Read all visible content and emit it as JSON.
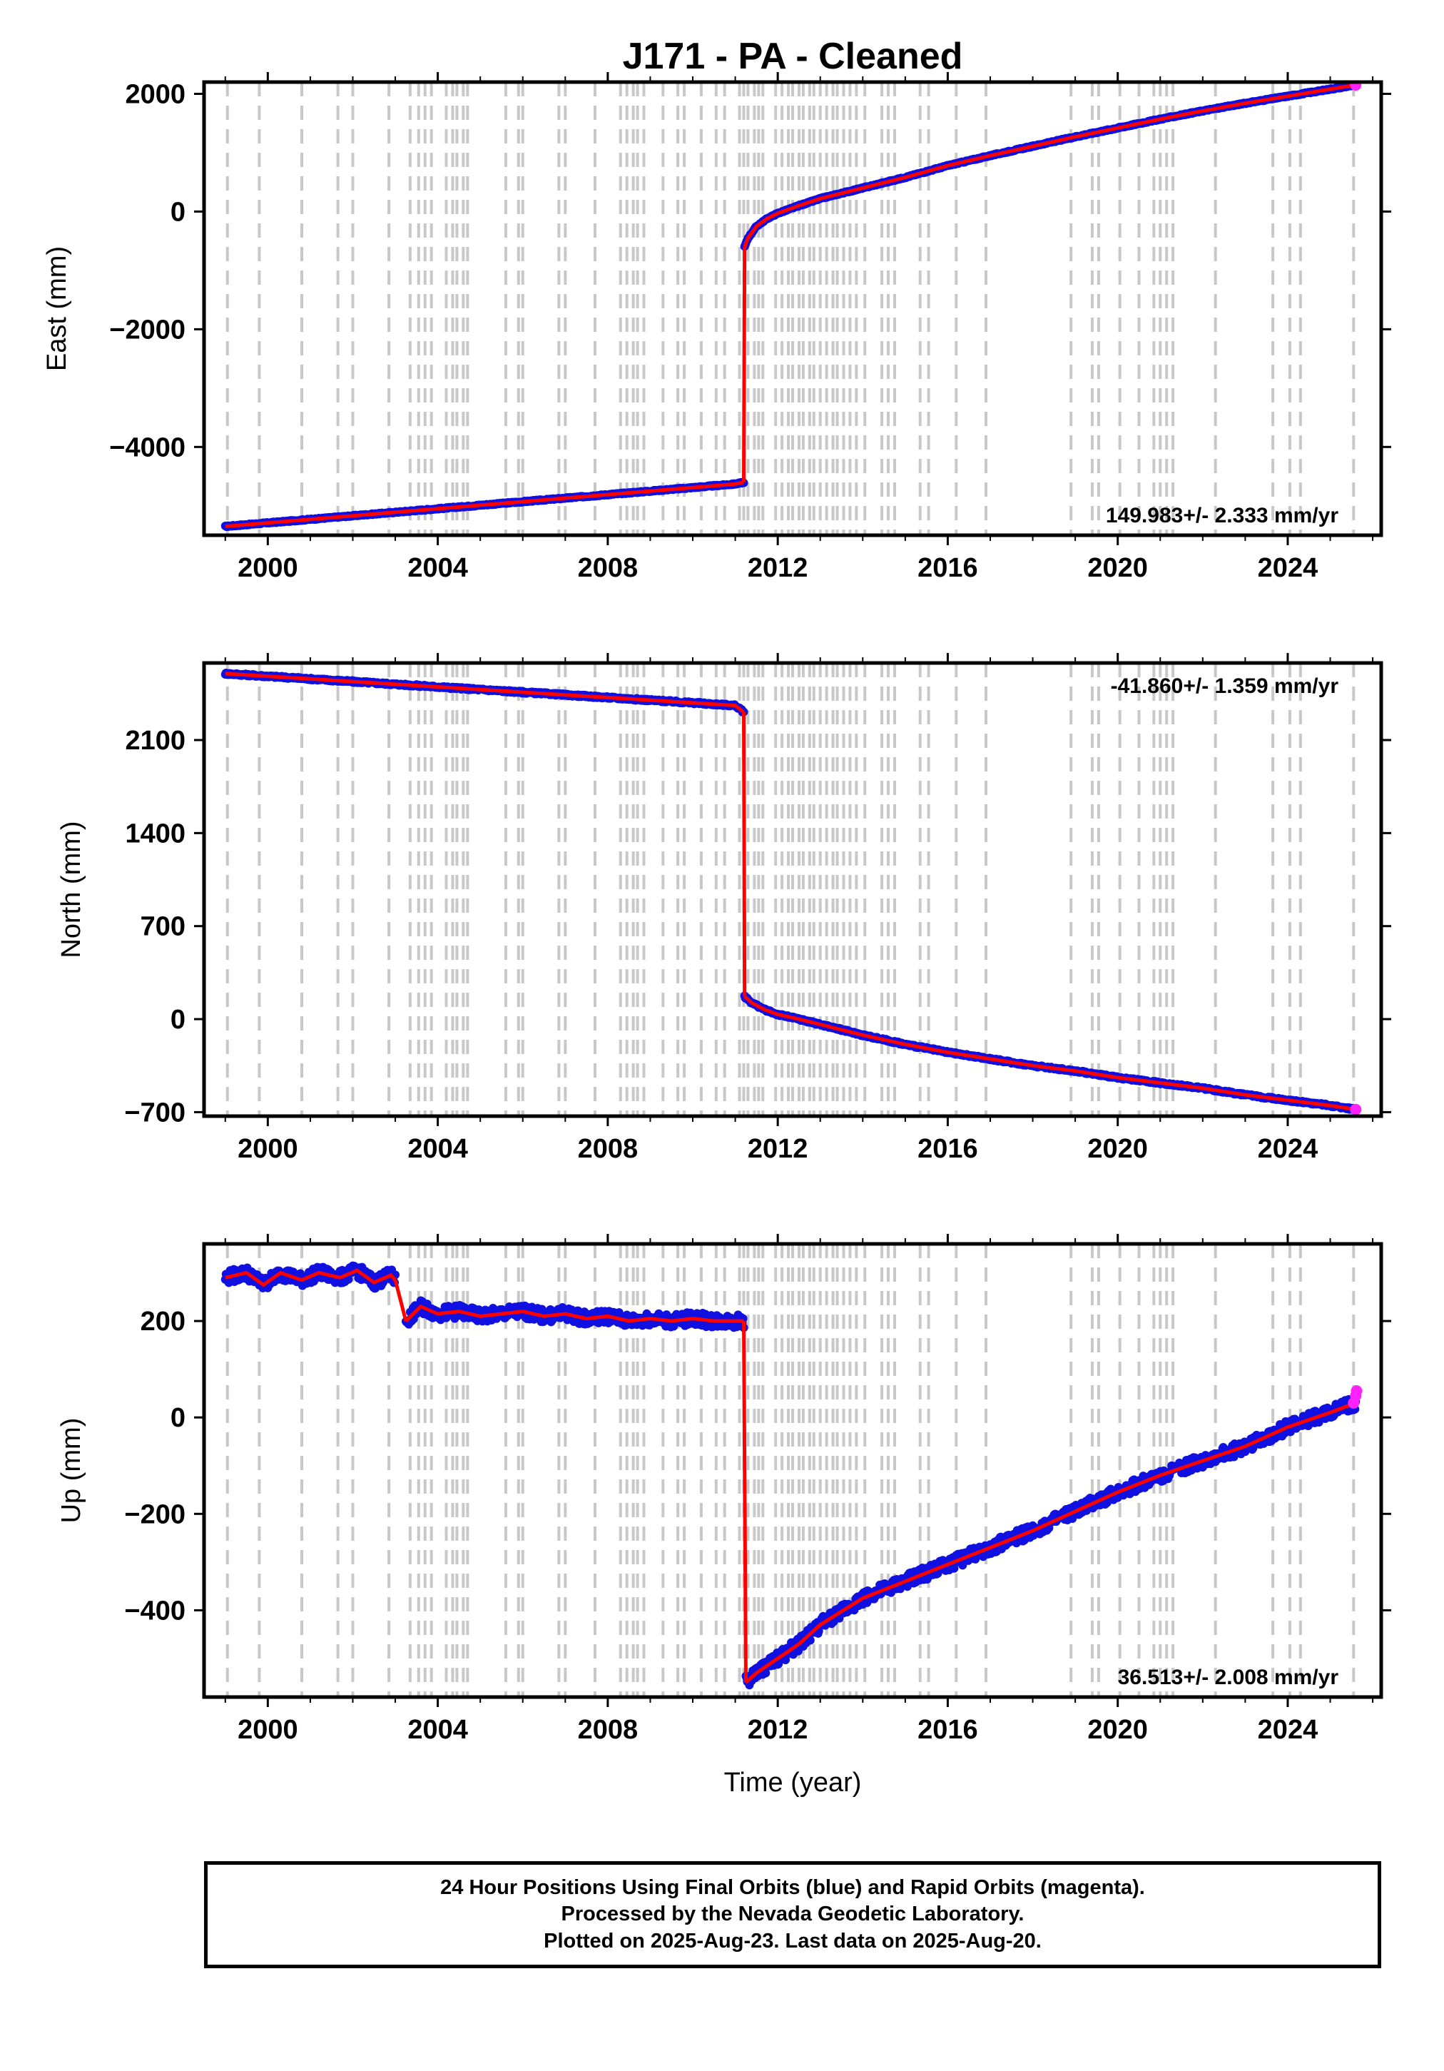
{
  "title": "J171  - PA - Cleaned",
  "xlabel": "Time (year)",
  "footer": [
    "24 Hour Positions Using Final Orbits (blue) and Rapid Orbits (magenta).",
    "Processed by the Nevada Geodetic Laboratory.",
    "Plotted on 2025-Aug-23. Last data on 2025-Aug-20."
  ],
  "colors": {
    "final_orbits": "#1010e0",
    "rapid_orbits": "#ff22ff",
    "model": "#ff0000",
    "event_lines": "#c8c8c8"
  },
  "event_years": [
    1999.05,
    1999.8,
    2000.8,
    2001.65,
    2002.0,
    2002.85,
    2003.35,
    2003.55,
    2003.7,
    2003.85,
    2004.2,
    2004.35,
    2004.45,
    2004.6,
    2004.7,
    2005.6,
    2005.9,
    2006.0,
    2006.85,
    2007.0,
    2007.7,
    2008.3,
    2008.45,
    2008.6,
    2008.7,
    2008.85,
    2009.3,
    2009.65,
    2009.8,
    2010.2,
    2010.55,
    2010.75,
    2011.1,
    2011.2,
    2011.3,
    2011.45,
    2011.55,
    2011.65,
    2011.95,
    2012.1,
    2012.25,
    2012.35,
    2012.5,
    2012.6,
    2012.75,
    2012.85,
    2013.0,
    2013.15,
    2013.3,
    2013.4,
    2013.55,
    2013.7,
    2013.85,
    2014.05,
    2014.45,
    2014.6,
    2014.75,
    2015.35,
    2015.55,
    2016.2,
    2016.9,
    2018.9,
    2019.4,
    2019.55,
    2020.05,
    2020.5,
    2020.85,
    2021.0,
    2021.15,
    2021.3,
    2022.3,
    2023.65,
    2024.05,
    2024.3,
    2025.55
  ],
  "chart_data": [
    {
      "type": "scatter",
      "component": "East",
      "ylabel": "East (mm)",
      "xlim": [
        1998.5,
        2026.2
      ],
      "ylim": [
        -5500,
        2200
      ],
      "xticks": [
        2000,
        2004,
        2008,
        2012,
        2016,
        2020,
        2024
      ],
      "xtick_labels": [
        "2000",
        "2004",
        "2008",
        "2012",
        "2016",
        "2020",
        "2024"
      ],
      "yticks": [
        -4000,
        -2000,
        0,
        2000
      ],
      "ytick_labels": [
        "−4000",
        "−2000",
        "0",
        "2000"
      ],
      "rate_label": "149.983+/- 2.333 mm/yr",
      "rate_position": "bottom-right",
      "series": [
        {
          "x": [
            1999.0,
            2000.0,
            2001.0,
            2002.0,
            2003.0,
            2004.0,
            2005.0,
            2006.0,
            2007.0,
            2008.0,
            2009.0,
            2010.0,
            2011.0,
            2011.2
          ],
          "y": [
            -5350,
            -5290,
            -5230,
            -5170,
            -5110,
            -5050,
            -4990,
            -4930,
            -4870,
            -4810,
            -4750,
            -4690,
            -4630,
            -4600
          ]
        },
        {
          "x": [
            2011.22,
            2011.3,
            2011.5,
            2011.75,
            2012.0,
            2012.5,
            2013.0,
            2014.0,
            2015.0,
            2016.0,
            2017.0,
            2018.0,
            2019.0,
            2020.0,
            2021.0,
            2022.0,
            2023.0,
            2024.0,
            2025.0,
            2025.6
          ],
          "y": [
            -600,
            -450,
            -250,
            -120,
            -30,
            100,
            220,
            400,
            580,
            780,
            950,
            1110,
            1270,
            1420,
            1570,
            1710,
            1840,
            1960,
            2080,
            2150
          ]
        }
      ],
      "rapid_points": {
        "x": [
          2025.6
        ],
        "y": [
          2150
        ]
      }
    },
    {
      "type": "scatter",
      "component": "North",
      "ylabel": "North (mm)",
      "xlim": [
        1998.5,
        2026.2
      ],
      "ylim": [
        -730,
        2680
      ],
      "xticks": [
        2000,
        2004,
        2008,
        2012,
        2016,
        2020,
        2024
      ],
      "xtick_labels": [
        "2000",
        "2004",
        "2008",
        "2012",
        "2016",
        "2020",
        "2024"
      ],
      "yticks": [
        -700,
        0,
        700,
        1400,
        2100
      ],
      "ytick_labels": [
        "−700",
        "0",
        "700",
        "1400",
        "2100"
      ],
      "rate_label": "-41.860+/- 1.359 mm/yr",
      "rate_position": "top-right",
      "series": [
        {
          "x": [
            1999.0,
            2000.0,
            2001.0,
            2002.0,
            2003.0,
            2004.0,
            2005.0,
            2006.0,
            2007.0,
            2008.0,
            2009.0,
            2010.0,
            2011.0,
            2011.2
          ],
          "y": [
            2600,
            2580,
            2560,
            2540,
            2520,
            2500,
            2480,
            2460,
            2440,
            2420,
            2400,
            2380,
            2360,
            2310
          ]
        },
        {
          "x": [
            2011.22,
            2011.4,
            2011.7,
            2012.0,
            2012.5,
            2013.0,
            2014.0,
            2015.0,
            2016.0,
            2017.0,
            2018.0,
            2019.0,
            2020.0,
            2021.0,
            2022.0,
            2023.0,
            2024.0,
            2025.0,
            2025.6
          ],
          "y": [
            170,
            120,
            70,
            35,
            0,
            -40,
            -120,
            -190,
            -250,
            -300,
            -350,
            -390,
            -440,
            -480,
            -520,
            -570,
            -610,
            -650,
            -680
          ]
        }
      ],
      "rapid_points": {
        "x": [
          2025.6
        ],
        "y": [
          -680
        ]
      }
    },
    {
      "type": "scatter",
      "component": "Up",
      "ylabel": "Up (mm)",
      "xlim": [
        1998.5,
        2026.2
      ],
      "ylim": [
        -580,
        360
      ],
      "xticks": [
        2000,
        2004,
        2008,
        2012,
        2016,
        2020,
        2024
      ],
      "xtick_labels": [
        "2000",
        "2004",
        "2008",
        "2012",
        "2016",
        "2020",
        "2024"
      ],
      "yticks": [
        -400,
        -200,
        0,
        200
      ],
      "ytick_labels": [
        "−400",
        "−200",
        "0",
        "200"
      ],
      "rate_label": "36.513+/- 2.008 mm/yr",
      "rate_position": "bottom-right",
      "series": [
        {
          "x": [
            1999.0,
            1999.5,
            1999.9,
            2000.3,
            2000.8,
            2001.2,
            2001.7,
            2002.1,
            2002.5,
            2002.9,
            2003.0
          ],
          "y": [
            290,
            300,
            275,
            300,
            285,
            300,
            290,
            305,
            280,
            295,
            285
          ]
        },
        {
          "x": [
            2003.25,
            2003.6,
            2004.0,
            2004.5,
            2005.0,
            2005.5,
            2006.0,
            2006.5,
            2007.0,
            2007.5,
            2008.0,
            2008.5,
            2009.0,
            2009.5,
            2010.0,
            2010.5,
            2011.0,
            2011.2
          ],
          "y": [
            200,
            230,
            215,
            220,
            210,
            215,
            220,
            210,
            215,
            205,
            210,
            200,
            205,
            200,
            205,
            200,
            200,
            200
          ]
        },
        {
          "x": [
            2011.25,
            2011.5,
            2012.0,
            2012.5,
            2013.0,
            2014.0,
            2015.0,
            2016.0,
            2017.0,
            2018.0,
            2019.0,
            2020.0,
            2021.0,
            2022.0,
            2023.0,
            2024.0,
            2025.0,
            2025.6
          ],
          "y": [
            -550,
            -530,
            -500,
            -470,
            -430,
            -375,
            -340,
            -305,
            -270,
            -235,
            -195,
            -155,
            -120,
            -90,
            -60,
            -20,
            10,
            30
          ]
        }
      ],
      "rapid_points": {
        "x": [
          2025.55,
          2025.6,
          2025.62
        ],
        "y": [
          30,
          45,
          55
        ]
      }
    }
  ]
}
